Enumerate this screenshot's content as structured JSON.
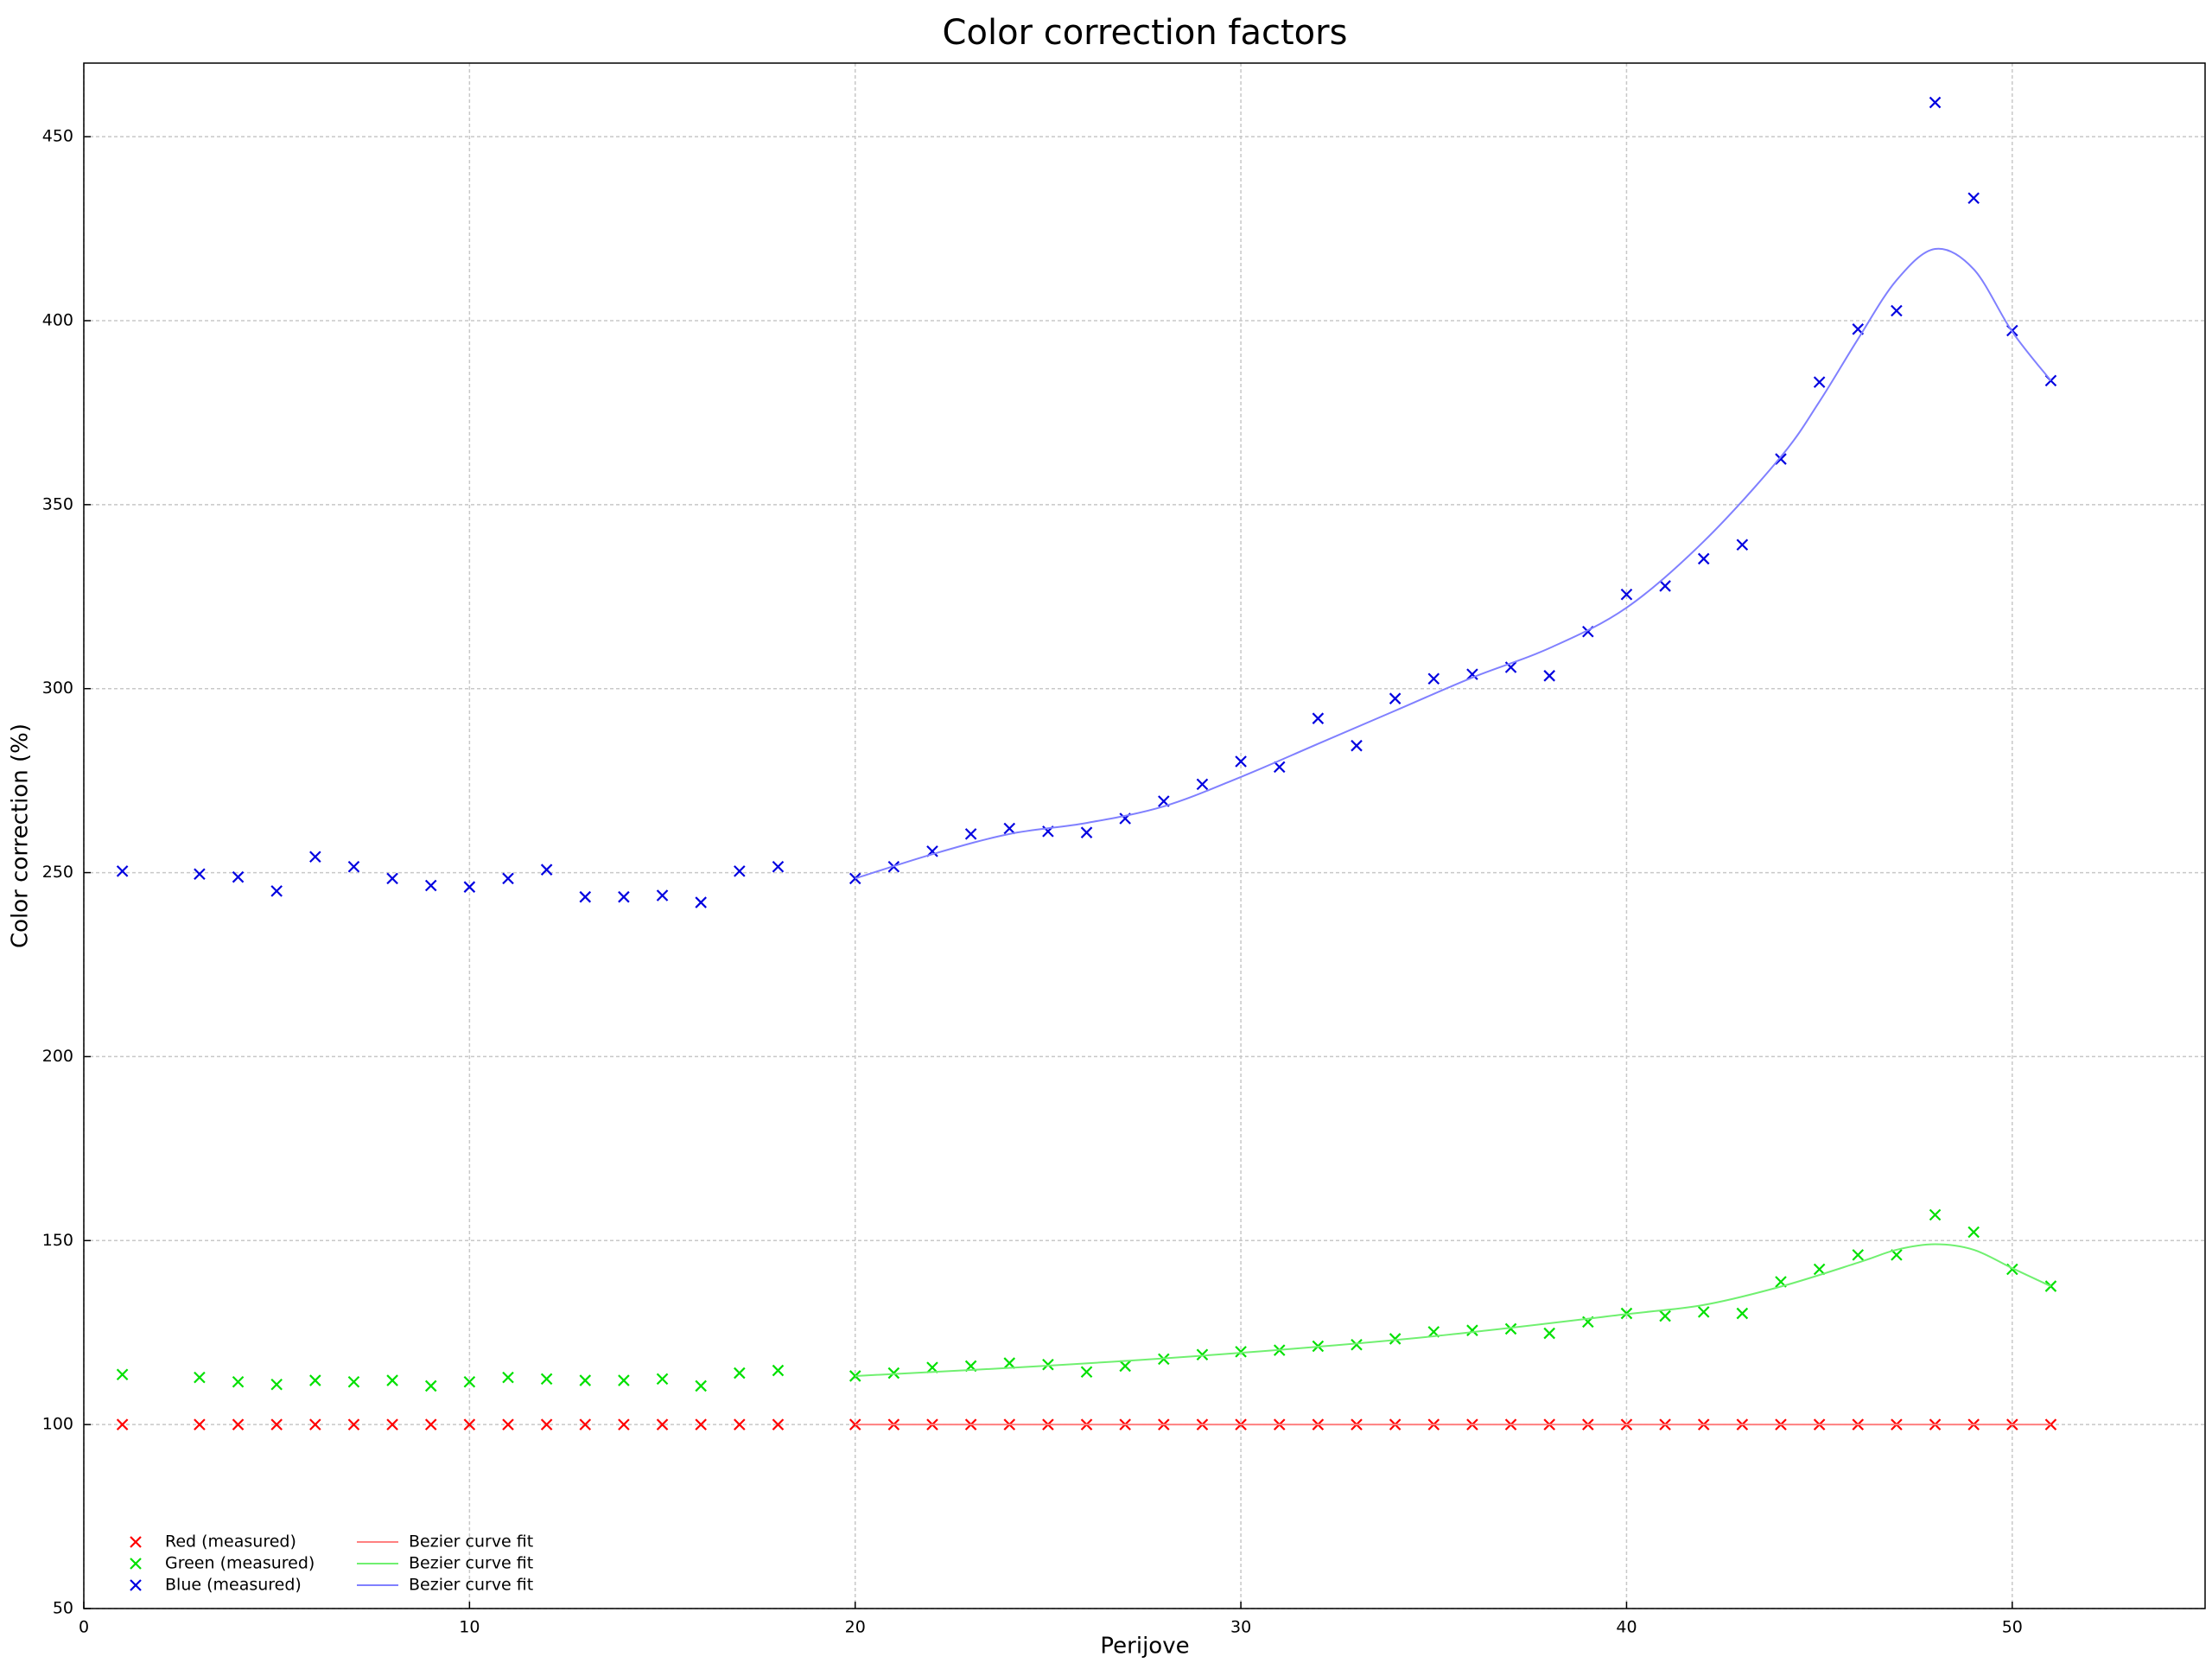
{
  "chart_data": {
    "type": "scatter",
    "title": "Color correction factors",
    "x_label": "Perijove",
    "y_label": "Color correction (%)",
    "xlim": [
      0,
      55
    ],
    "ylim": [
      50,
      470
    ],
    "xticks": [
      0,
      10,
      20,
      30,
      40,
      50
    ],
    "yticks": [
      50,
      100,
      150,
      200,
      250,
      300,
      350,
      400,
      450
    ],
    "grid": true,
    "legend": "lower left",
    "series": [
      {
        "name": "Red (measured)",
        "type": "scatter",
        "color": "#ff0000",
        "x": [
          1,
          3,
          4,
          5,
          6,
          7,
          8,
          9,
          10,
          11,
          12,
          13,
          14,
          15,
          16,
          17,
          18,
          20,
          21,
          22,
          23,
          24,
          25,
          26,
          27,
          28,
          29,
          30,
          31,
          32,
          33,
          34,
          35,
          36,
          37,
          38,
          39,
          40,
          41,
          42,
          43,
          44,
          45,
          46,
          47,
          48,
          49,
          50,
          51
        ],
        "values": [
          100,
          100,
          100,
          100,
          100,
          100,
          100,
          100,
          100,
          100,
          100,
          100,
          100,
          100,
          100,
          100,
          100,
          100,
          100,
          100,
          100,
          100,
          100,
          100,
          100,
          100,
          100,
          100,
          100,
          100,
          100,
          100,
          100,
          100,
          100,
          100,
          100,
          100,
          100,
          100,
          100,
          100,
          100,
          100,
          100,
          100,
          100,
          100,
          100
        ]
      },
      {
        "name": "Green (measured)",
        "type": "scatter",
        "color": "#00e000",
        "x": [
          1,
          3,
          4,
          5,
          6,
          7,
          8,
          9,
          10,
          11,
          12,
          13,
          14,
          15,
          16,
          17,
          18,
          20,
          21,
          22,
          23,
          24,
          25,
          26,
          27,
          28,
          29,
          30,
          31,
          32,
          33,
          34,
          35,
          36,
          37,
          38,
          39,
          40,
          41,
          42,
          43,
          44,
          45,
          46,
          47,
          48,
          49,
          50,
          51
        ],
        "values": [
          113.6,
          112.8,
          111.6,
          110.9,
          112,
          111.6,
          112,
          110.5,
          111.6,
          112.8,
          112.4,
          112,
          112,
          112.4,
          110.5,
          114,
          114.7,
          113.2,
          114,
          115.5,
          115.9,
          116.7,
          116.3,
          114.3,
          115.9,
          117.8,
          119,
          119.8,
          120.2,
          121.3,
          121.7,
          123.3,
          125.2,
          125.6,
          126,
          124.8,
          127.9,
          130.2,
          129.5,
          130.6,
          130.2,
          138.8,
          142.2,
          146.1,
          146.1,
          157,
          152.3,
          142.2,
          137.6
        ]
      },
      {
        "name": "Blue (measured)",
        "type": "scatter",
        "color": "#0000e0",
        "x": [
          1,
          3,
          4,
          5,
          6,
          7,
          8,
          9,
          10,
          11,
          12,
          13,
          14,
          15,
          16,
          17,
          18,
          20,
          21,
          22,
          23,
          24,
          25,
          26,
          27,
          28,
          29,
          30,
          31,
          32,
          33,
          34,
          35,
          36,
          37,
          38,
          39,
          40,
          41,
          42,
          43,
          44,
          45,
          46,
          47,
          48,
          49,
          50,
          51
        ],
        "values": [
          250.4,
          249.6,
          248.8,
          245,
          254.3,
          251.6,
          248.4,
          246.5,
          246.1,
          248.4,
          250.8,
          243.4,
          243.4,
          243.8,
          241.9,
          250.4,
          251.6,
          248.4,
          251.6,
          255.8,
          260.5,
          262,
          261.2,
          260.9,
          264.7,
          269.4,
          274,
          280.2,
          278.7,
          291.9,
          284.5,
          297.3,
          302.7,
          303.9,
          305.8,
          303.5,
          315.5,
          325.6,
          327.9,
          335.3,
          339.1,
          362.4,
          383.3,
          397.7,
          402.7,
          459.3,
          433.3,
          397.3,
          383.7
        ]
      },
      {
        "name": "Bezier curve fit",
        "type": "line",
        "color": "#ff8080",
        "x": [
          20,
          51
        ],
        "values": [
          100,
          100
        ]
      },
      {
        "name": "Bezier curve fit",
        "type": "line",
        "color": "#70f070",
        "x": [
          20,
          25,
          30,
          35,
          40,
          42,
          44,
          46,
          47,
          48,
          49,
          50,
          51
        ],
        "values": [
          113.2,
          116,
          119.5,
          124,
          130,
          132.5,
          137.5,
          144,
          147.5,
          149,
          147.5,
          142.5,
          137.6
        ]
      },
      {
        "name": "Bezier curve fit",
        "type": "line",
        "color": "#8080ff",
        "x": [
          20,
          22,
          24,
          26,
          28,
          30,
          32,
          34,
          36,
          38,
          40,
          42,
          44,
          45,
          46,
          47,
          48,
          49,
          50,
          51
        ],
        "values": [
          248.4,
          255,
          260.5,
          263.5,
          268,
          276,
          285,
          294,
          303,
          311,
          322,
          340,
          363,
          378,
          395,
          411,
          419.5,
          414,
          397,
          383.7
        ]
      }
    ]
  }
}
